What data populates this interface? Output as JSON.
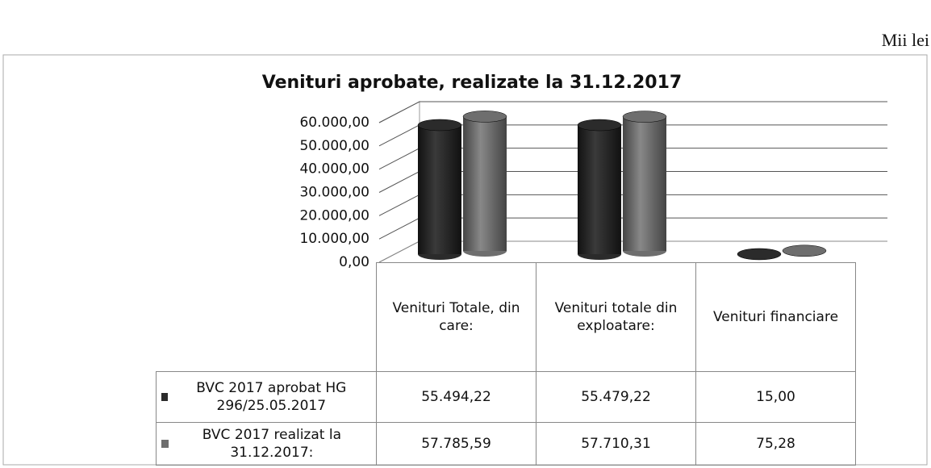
{
  "chart_data": {
    "type": "bar3d",
    "title": "Venituri aprobate, realizate la 31.12.2017",
    "annotation": "Mii lei",
    "categories": [
      "Venituri Totale, din care:",
      "Venituri totale din exploatare:",
      "Venituri financiare"
    ],
    "series": [
      {
        "name": "BVC 2017 aprobat HG 296/25.05.2017",
        "color": "#2b2b2b",
        "values": [
          55494.22,
          55479.22,
          15.0
        ],
        "value_labels": [
          "55.494,22",
          "55.479,22",
          "15,00"
        ]
      },
      {
        "name": "BVC 2017 realizat la 31.12.2017:",
        "color": "#6e6e6e",
        "values": [
          57785.59,
          57710.31,
          75.28
        ],
        "value_labels": [
          "57.785,59",
          "57.710,31",
          "75,28"
        ]
      }
    ],
    "ylim": [
      0,
      60000
    ],
    "yticks": [
      {
        "value": 0,
        "label": "0,00"
      },
      {
        "value": 10000,
        "label": "10.000,00"
      },
      {
        "value": 20000,
        "label": "20.000,00"
      },
      {
        "value": 30000,
        "label": "30.000,00"
      },
      {
        "value": 40000,
        "label": "40.000,00"
      },
      {
        "value": 50000,
        "label": "50.000,00"
      },
      {
        "value": 60000,
        "label": "60.000,00"
      }
    ],
    "grid": true,
    "legend": "table"
  }
}
